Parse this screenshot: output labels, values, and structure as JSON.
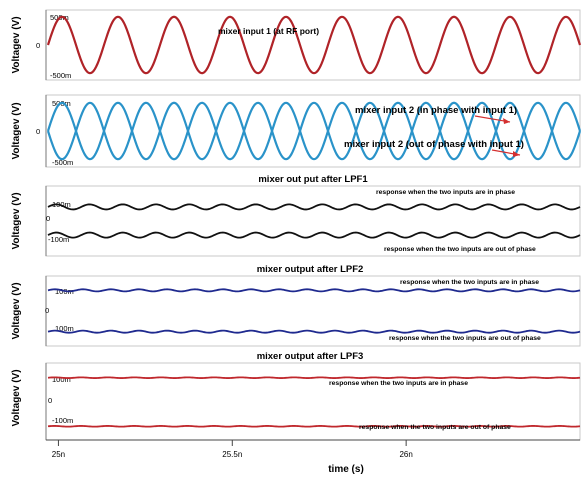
{
  "chart_data": [
    {
      "type": "line",
      "title": "",
      "ylabel": "Voltagev (V)",
      "ytick_labels": [
        "500m",
        "0",
        "-500m"
      ],
      "ylim": [
        -0.55,
        0.55
      ],
      "annotations": [
        "mixer input 1 (at RF port)"
      ],
      "series": [
        {
          "wave": "sine",
          "amplitude": 0.5,
          "offset": 0,
          "cycles": 9.5,
          "phase": 0,
          "color": "#b02328"
        }
      ]
    },
    {
      "type": "line",
      "title": "",
      "ylabel": "Voltagev (V)",
      "ytick_labels": [
        "500m",
        "0",
        "-500m"
      ],
      "ylim": [
        -0.55,
        0.55
      ],
      "annotations": [
        "mixer input 2 (in phase with input 1)",
        "mixer input 2 (out of  phase with input 1)"
      ],
      "series": [
        {
          "wave": "sine",
          "amplitude": 0.5,
          "offset": 0,
          "cycles": 9.5,
          "phase": 0,
          "color": "#2a93c9"
        },
        {
          "wave": "sine",
          "amplitude": 0.5,
          "offset": 0,
          "cycles": 9.5,
          "phase": 3.14159,
          "color": "#2a93c9"
        }
      ]
    },
    {
      "type": "line",
      "title": "mixer out put after LPF1",
      "ylabel": "Voltagev (V)",
      "ytick_labels": [
        "100m",
        "0",
        "-100m"
      ],
      "ylim": [
        -0.22,
        0.22
      ],
      "annotations": [
        "response when the two inputs are in phase",
        "response when the two inputs are out of phase"
      ],
      "series": [
        {
          "wave": "sine",
          "amplitude": 0.018,
          "offset": 0.1,
          "cycles": 16,
          "phase": 0,
          "color": "#111111"
        },
        {
          "wave": "sine",
          "amplitude": 0.018,
          "offset": -0.1,
          "cycles": 16,
          "phase": 0,
          "color": "#111111"
        }
      ]
    },
    {
      "type": "line",
      "title": "mixer output after LPF2",
      "ylabel": "Voltagev (V)",
      "ytick_labels": [
        "100m",
        "0",
        "100m"
      ],
      "ylim": [
        -0.15,
        0.15
      ],
      "annotations": [
        "response when the two inputs are in phase",
        "response when the two inputs are out of phase"
      ],
      "series": [
        {
          "wave": "sine",
          "amplitude": 0.005,
          "offset": 0.1,
          "cycles": 19,
          "phase": 0,
          "color": "#1f2a8f"
        },
        {
          "wave": "sine",
          "amplitude": 0.005,
          "offset": -0.1,
          "cycles": 19,
          "phase": 0,
          "color": "#1f2a8f"
        }
      ]
    },
    {
      "type": "line",
      "title": "mixer output after LPF3",
      "ylabel": "Voltagev (V)",
      "ytick_labels": [
        "100m",
        "0",
        "-100m"
      ],
      "ylim": [
        -0.14,
        0.14
      ],
      "annotations": [
        "response when the two inputs are in phase",
        "response when the two inputs are out of phase"
      ],
      "series": [
        {
          "wave": "sine",
          "amplitude": 0.0015,
          "offset": 0.1,
          "cycles": 20,
          "phase": 0,
          "color": "#c0282d"
        },
        {
          "wave": "sine",
          "amplitude": 0.0015,
          "offset": -0.1,
          "cycles": 20,
          "phase": 0,
          "color": "#c0282d"
        }
      ]
    }
  ],
  "x_axis": {
    "label": "time (s)",
    "ticks": [
      {
        "value": 25.0,
        "label": "25n"
      },
      {
        "value": 25.5,
        "label": "25.5n"
      },
      {
        "value": 26.0,
        "label": "26n"
      }
    ],
    "xlim": [
      24.97,
      26.5
    ]
  }
}
